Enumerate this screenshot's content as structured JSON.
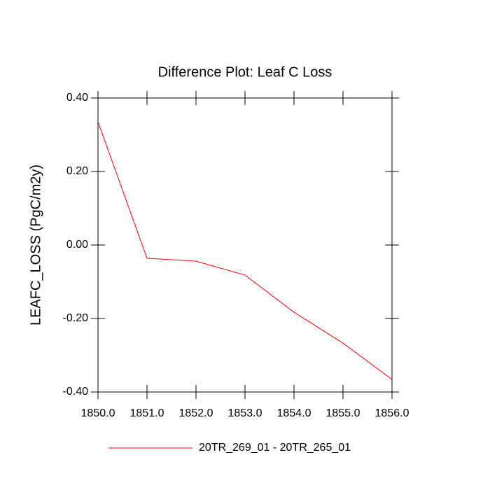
{
  "chart_data": {
    "type": "line",
    "title": "Difference Plot: Leaf C Loss",
    "y_label": "LEAFC_LOSS  (PgC/m2y)",
    "x": [
      1850,
      1851,
      1852,
      1853,
      1854,
      1855,
      1856
    ],
    "series": [
      {
        "name": "20TR_269_01 - 20TR_265_01",
        "color": "#ff0000",
        "values": [
          0.335,
          -0.036,
          -0.044,
          -0.082,
          -0.183,
          -0.267,
          -0.366
        ]
      }
    ],
    "xlim": [
      1850,
      1856
    ],
    "xticks": [
      {
        "value": 1850,
        "label": "1850.0"
      },
      {
        "value": 1851,
        "label": "1851.0"
      },
      {
        "value": 1852,
        "label": "1852.0"
      },
      {
        "value": 1853,
        "label": "1853.0"
      },
      {
        "value": 1854,
        "label": "1854.0"
      },
      {
        "value": 1855,
        "label": "1855.0"
      },
      {
        "value": 1856,
        "label": "1856.0"
      }
    ],
    "ylim": [
      -0.4,
      0.4
    ],
    "yticks": [
      {
        "value": -0.4,
        "label": "-0.40"
      },
      {
        "value": -0.2,
        "label": "-0.20"
      },
      {
        "value": 0,
        "label": "0.00"
      },
      {
        "value": 0.2,
        "label": "0.20"
      },
      {
        "value": 0.4,
        "label": "0.40"
      }
    ],
    "grid": false,
    "legend": "bottom"
  }
}
